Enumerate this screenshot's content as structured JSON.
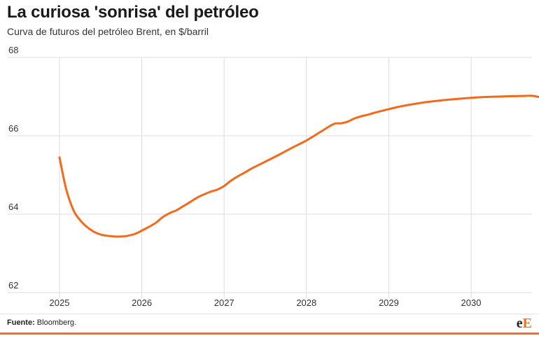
{
  "header": {
    "title": "La curiosa 'sonrisa' del petróleo",
    "subtitle": "Curva de futuros del petróleo Brent, en $/barril"
  },
  "footer": {
    "source_label": "Fuente:",
    "source_text": "Bloomberg.",
    "logo_e": "e",
    "logo_E": "E"
  },
  "colors": {
    "line": "#f26a1b",
    "grid": "#dddddd",
    "brand": "#ff6b1a"
  },
  "chart_data": {
    "type": "line",
    "title": "La curiosa 'sonrisa' del petróleo",
    "subtitle": "Curva de futuros del petróleo Brent, en $/barril",
    "xlabel": "",
    "ylabel": "",
    "xlim": [
      2025,
      2030.85
    ],
    "ylim": [
      62,
      68
    ],
    "x_ticks": [
      2025,
      2026,
      2027,
      2028,
      2029,
      2030
    ],
    "y_ticks": [
      62,
      64,
      66,
      68
    ],
    "grid": true,
    "legend": "none",
    "series": [
      {
        "name": "",
        "x": [
          2025.0,
          2025.08,
          2025.17,
          2025.25,
          2025.33,
          2025.42,
          2025.5,
          2025.58,
          2025.67,
          2025.75,
          2025.83,
          2025.92,
          2026.0,
          2026.08,
          2026.17,
          2026.25,
          2026.33,
          2026.42,
          2026.5,
          2026.58,
          2026.67,
          2026.75,
          2026.83,
          2026.92,
          2027.0,
          2027.08,
          2027.17,
          2027.25,
          2027.33,
          2027.5,
          2027.67,
          2027.83,
          2028.0,
          2028.17,
          2028.33,
          2028.42,
          2028.5,
          2028.58,
          2028.67,
          2028.75,
          2028.83,
          2029.0,
          2029.17,
          2029.33,
          2029.5,
          2029.67,
          2029.83,
          2030.0,
          2030.17,
          2030.33,
          2030.5,
          2030.67,
          2030.75,
          2030.8,
          2030.85
        ],
        "values": [
          65.45,
          64.65,
          64.1,
          63.85,
          63.68,
          63.55,
          63.48,
          63.45,
          63.43,
          63.43,
          63.45,
          63.5,
          63.58,
          63.67,
          63.78,
          63.92,
          64.02,
          64.1,
          64.2,
          64.3,
          64.42,
          64.5,
          64.57,
          64.63,
          64.72,
          64.85,
          64.97,
          65.06,
          65.16,
          65.34,
          65.52,
          65.7,
          65.88,
          66.1,
          66.3,
          66.32,
          66.36,
          66.44,
          66.5,
          66.54,
          66.59,
          66.68,
          66.76,
          66.82,
          66.87,
          66.91,
          66.94,
          66.97,
          66.99,
          67.0,
          67.01,
          67.02,
          67.02,
          67.0,
          66.98
        ]
      }
    ]
  }
}
